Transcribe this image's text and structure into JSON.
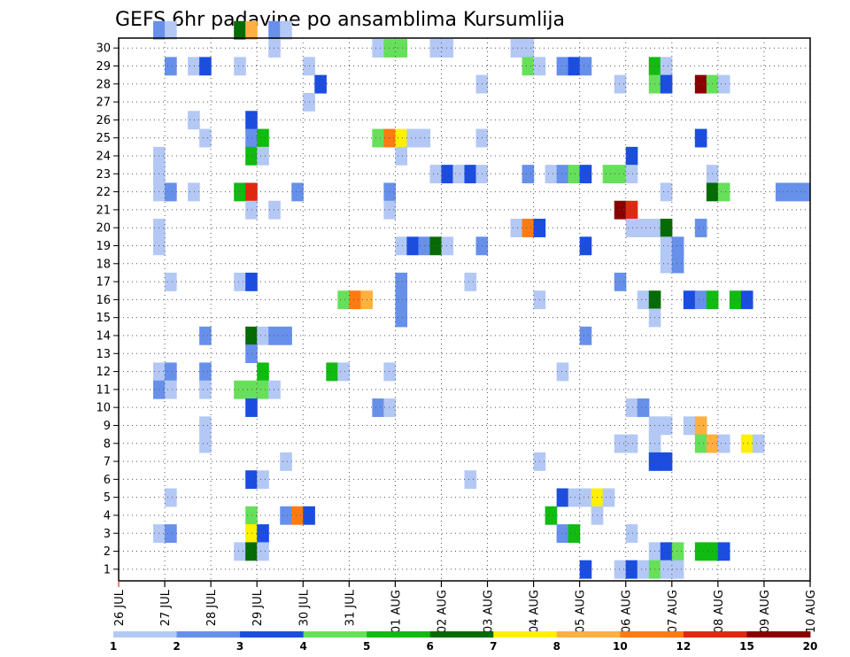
{
  "chart_data": {
    "type": "heatmap",
    "title": "GEFS 6hr padavine po ansamblima Kursumlija",
    "xlabel": "",
    "ylabel": "",
    "x_start": "26 JUL",
    "x_step_hours": 6,
    "x_steps": 60,
    "x_tick_labels": [
      "26 JUL",
      "27 JUL",
      "28 JUL",
      "29 JUL",
      "30 JUL",
      "31 JUL",
      "01 AUG",
      "02 AUG",
      "03 AUG",
      "04 AUG",
      "05 AUG",
      "06 AUG",
      "07 AUG",
      "08 AUG",
      "09 AUG",
      "10 AUG"
    ],
    "y_tick_labels": [
      "1",
      "2",
      "3",
      "4",
      "5",
      "6",
      "7",
      "8",
      "9",
      "10",
      "11",
      "12",
      "13",
      "14",
      "15",
      "16",
      "17",
      "18",
      "19",
      "20",
      "21",
      "22",
      "23",
      "24",
      "25",
      "26",
      "27",
      "28",
      "29",
      "30"
    ],
    "ylim": [
      0,
      30
    ],
    "grid": true,
    "colorbar": {
      "position": "bottom",
      "labels": [
        "1",
        "2",
        "3",
        "4",
        "5",
        "6",
        "7",
        "8",
        "10",
        "12",
        "15",
        "20"
      ],
      "colors": [
        "#b3c8f5",
        "#6690ea",
        "#1a4de0",
        "#66e05a",
        "#11bb11",
        "#056b05",
        "#fff000",
        "#ffb040",
        "#ff7a10",
        "#e02810",
        "#8a0000"
      ]
    },
    "cells": [
      [
        30,
        3,
        1
      ],
      [
        30,
        4,
        0
      ],
      [
        30,
        10,
        5
      ],
      [
        30,
        11,
        7
      ],
      [
        30,
        13,
        1
      ],
      [
        30,
        14,
        0
      ],
      [
        29,
        13,
        0
      ],
      [
        29,
        22,
        0
      ],
      [
        29,
        23,
        3
      ],
      [
        29,
        24,
        3
      ],
      [
        29,
        27,
        0
      ],
      [
        29,
        28,
        0
      ],
      [
        29,
        34,
        0
      ],
      [
        29,
        35,
        0
      ],
      [
        28,
        4,
        1
      ],
      [
        28,
        6,
        0
      ],
      [
        28,
        7,
        2
      ],
      [
        28,
        10,
        0
      ],
      [
        28,
        16,
        0
      ],
      [
        28,
        35,
        3
      ],
      [
        28,
        36,
        0
      ],
      [
        28,
        38,
        1
      ],
      [
        28,
        39,
        2
      ],
      [
        28,
        40,
        1
      ],
      [
        28,
        46,
        4
      ],
      [
        28,
        47,
        0
      ],
      [
        27,
        17,
        2
      ],
      [
        27,
        31,
        0
      ],
      [
        27,
        43,
        0
      ],
      [
        27,
        46,
        3
      ],
      [
        27,
        47,
        2
      ],
      [
        27,
        50,
        10
      ],
      [
        27,
        51,
        3
      ],
      [
        27,
        52,
        0
      ],
      [
        26,
        16,
        0
      ],
      [
        25,
        6,
        0
      ],
      [
        25,
        11,
        2
      ],
      [
        24,
        7,
        0
      ],
      [
        24,
        11,
        1
      ],
      [
        24,
        12,
        4
      ],
      [
        24,
        22,
        3
      ],
      [
        24,
        23,
        8
      ],
      [
        24,
        24,
        6
      ],
      [
        24,
        25,
        0
      ],
      [
        24,
        26,
        0
      ],
      [
        24,
        31,
        0
      ],
      [
        24,
        50,
        2
      ],
      [
        23,
        3,
        0
      ],
      [
        23,
        11,
        4
      ],
      [
        23,
        12,
        0
      ],
      [
        23,
        24,
        0
      ],
      [
        23,
        44,
        2
      ],
      [
        22,
        3,
        0
      ],
      [
        22,
        27,
        0
      ],
      [
        22,
        28,
        2
      ],
      [
        22,
        29,
        0
      ],
      [
        22,
        30,
        2
      ],
      [
        22,
        31,
        0
      ],
      [
        22,
        35,
        1
      ],
      [
        22,
        37,
        0
      ],
      [
        22,
        38,
        1
      ],
      [
        22,
        39,
        3
      ],
      [
        22,
        40,
        2
      ],
      [
        22,
        42,
        3
      ],
      [
        22,
        43,
        3
      ],
      [
        22,
        44,
        0
      ],
      [
        22,
        51,
        0
      ],
      [
        21,
        3,
        0
      ],
      [
        21,
        4,
        1
      ],
      [
        21,
        6,
        0
      ],
      [
        21,
        10,
        4
      ],
      [
        21,
        11,
        9
      ],
      [
        21,
        15,
        1
      ],
      [
        21,
        23,
        1
      ],
      [
        21,
        47,
        0
      ],
      [
        21,
        51,
        5
      ],
      [
        21,
        52,
        3
      ],
      [
        21,
        57,
        1
      ],
      [
        21,
        58,
        1
      ],
      [
        21,
        59,
        1
      ],
      [
        20,
        11,
        0
      ],
      [
        20,
        13,
        0
      ],
      [
        20,
        23,
        0
      ],
      [
        20,
        43,
        10
      ],
      [
        20,
        44,
        9
      ],
      [
        19,
        3,
        0
      ],
      [
        19,
        34,
        0
      ],
      [
        19,
        35,
        8
      ],
      [
        19,
        36,
        2
      ],
      [
        19,
        44,
        0
      ],
      [
        19,
        45,
        0
      ],
      [
        19,
        46,
        0
      ],
      [
        19,
        47,
        5
      ],
      [
        19,
        50,
        1
      ],
      [
        18,
        3,
        0
      ],
      [
        18,
        24,
        0
      ],
      [
        18,
        25,
        2
      ],
      [
        18,
        26,
        1
      ],
      [
        18,
        27,
        5
      ],
      [
        18,
        28,
        0
      ],
      [
        18,
        31,
        1
      ],
      [
        18,
        40,
        2
      ],
      [
        18,
        47,
        0
      ],
      [
        18,
        48,
        1
      ],
      [
        17,
        47,
        0
      ],
      [
        17,
        48,
        1
      ],
      [
        16,
        4,
        0
      ],
      [
        16,
        10,
        0
      ],
      [
        16,
        11,
        2
      ],
      [
        16,
        24,
        1
      ],
      [
        16,
        30,
        0
      ],
      [
        16,
        43,
        1
      ],
      [
        15,
        19,
        3
      ],
      [
        15,
        20,
        8
      ],
      [
        15,
        21,
        7
      ],
      [
        15,
        24,
        1
      ],
      [
        15,
        36,
        0
      ],
      [
        15,
        45,
        0
      ],
      [
        15,
        46,
        5
      ],
      [
        15,
        49,
        2
      ],
      [
        15,
        50,
        1
      ],
      [
        15,
        51,
        4
      ],
      [
        15,
        53,
        4
      ],
      [
        15,
        54,
        2
      ],
      [
        14,
        24,
        1
      ],
      [
        14,
        46,
        0
      ],
      [
        13,
        7,
        1
      ],
      [
        13,
        11,
        5
      ],
      [
        13,
        12,
        0
      ],
      [
        13,
        13,
        1
      ],
      [
        13,
        14,
        1
      ],
      [
        13,
        40,
        1
      ],
      [
        12,
        11,
        1
      ],
      [
        11,
        3,
        0
      ],
      [
        11,
        4,
        1
      ],
      [
        11,
        7,
        1
      ],
      [
        11,
        12,
        4
      ],
      [
        11,
        18,
        4
      ],
      [
        11,
        19,
        0
      ],
      [
        11,
        23,
        0
      ],
      [
        11,
        38,
        0
      ],
      [
        10,
        3,
        1
      ],
      [
        10,
        4,
        0
      ],
      [
        10,
        7,
        0
      ],
      [
        10,
        10,
        3
      ],
      [
        10,
        11,
        3
      ],
      [
        10,
        12,
        3
      ],
      [
        10,
        13,
        0
      ],
      [
        9,
        11,
        2
      ],
      [
        9,
        22,
        1
      ],
      [
        9,
        23,
        0
      ],
      [
        9,
        44,
        0
      ],
      [
        9,
        45,
        1
      ],
      [
        8,
        7,
        0
      ],
      [
        8,
        46,
        0
      ],
      [
        8,
        47,
        0
      ],
      [
        8,
        49,
        0
      ],
      [
        8,
        50,
        7
      ],
      [
        7,
        7,
        0
      ],
      [
        7,
        43,
        0
      ],
      [
        7,
        44,
        0
      ],
      [
        7,
        46,
        0
      ],
      [
        7,
        50,
        3
      ],
      [
        7,
        51,
        7
      ],
      [
        7,
        52,
        0
      ],
      [
        7,
        54,
        6
      ],
      [
        7,
        55,
        0
      ],
      [
        6,
        14,
        0
      ],
      [
        6,
        36,
        0
      ],
      [
        6,
        46,
        2
      ],
      [
        6,
        47,
        2
      ],
      [
        5,
        11,
        2
      ],
      [
        5,
        12,
        0
      ],
      [
        5,
        30,
        0
      ],
      [
        4,
        4,
        0
      ],
      [
        4,
        38,
        2
      ],
      [
        4,
        39,
        0
      ],
      [
        4,
        40,
        0
      ],
      [
        4,
        41,
        6
      ],
      [
        4,
        42,
        0
      ],
      [
        3,
        11,
        3
      ],
      [
        3,
        14,
        1
      ],
      [
        3,
        15,
        8
      ],
      [
        3,
        16,
        2
      ],
      [
        3,
        37,
        4
      ],
      [
        3,
        41,
        0
      ],
      [
        2,
        3,
        0
      ],
      [
        2,
        4,
        1
      ],
      [
        2,
        11,
        6
      ],
      [
        2,
        12,
        2
      ],
      [
        2,
        38,
        1
      ],
      [
        2,
        39,
        4
      ],
      [
        2,
        44,
        0
      ],
      [
        1,
        10,
        0
      ],
      [
        1,
        11,
        5
      ],
      [
        1,
        12,
        0
      ],
      [
        1,
        46,
        0
      ],
      [
        1,
        47,
        2
      ],
      [
        1,
        48,
        3
      ],
      [
        1,
        50,
        4
      ],
      [
        1,
        51,
        4
      ],
      [
        1,
        52,
        2
      ],
      [
        0,
        40,
        2
      ],
      [
        0,
        43,
        0
      ],
      [
        0,
        44,
        2
      ],
      [
        0,
        45,
        0
      ],
      [
        0,
        46,
        3
      ],
      [
        0,
        47,
        0
      ],
      [
        0,
        48,
        0
      ]
    ]
  }
}
